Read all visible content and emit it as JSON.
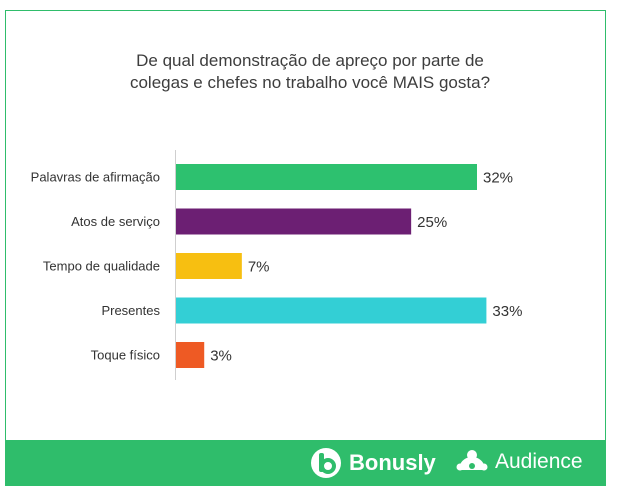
{
  "chart_data": {
    "type": "bar",
    "orientation": "horizontal",
    "title": "De qual demonstração de apreço por parte de\ncolegas e chefes no trabalho você MAIS gosta?",
    "categories": [
      "Palavras de afirmação",
      "Atos de serviço",
      "Tempo de qualidade",
      "Presentes",
      "Toque físico"
    ],
    "values": [
      32,
      25,
      7,
      33,
      3
    ],
    "value_labels": [
      "32%",
      "25%",
      "7%",
      "33%",
      "3%"
    ],
    "colors": [
      "#2dc16f",
      "#6c1f73",
      "#f7bf11",
      "#33cfd5",
      "#ee5a24"
    ],
    "xlim": [
      0,
      100
    ],
    "grid": false
  },
  "footer": {
    "logo_bonusly": "Bonusly",
    "logo_audience": "Audience",
    "background": "#2fbd6b"
  }
}
